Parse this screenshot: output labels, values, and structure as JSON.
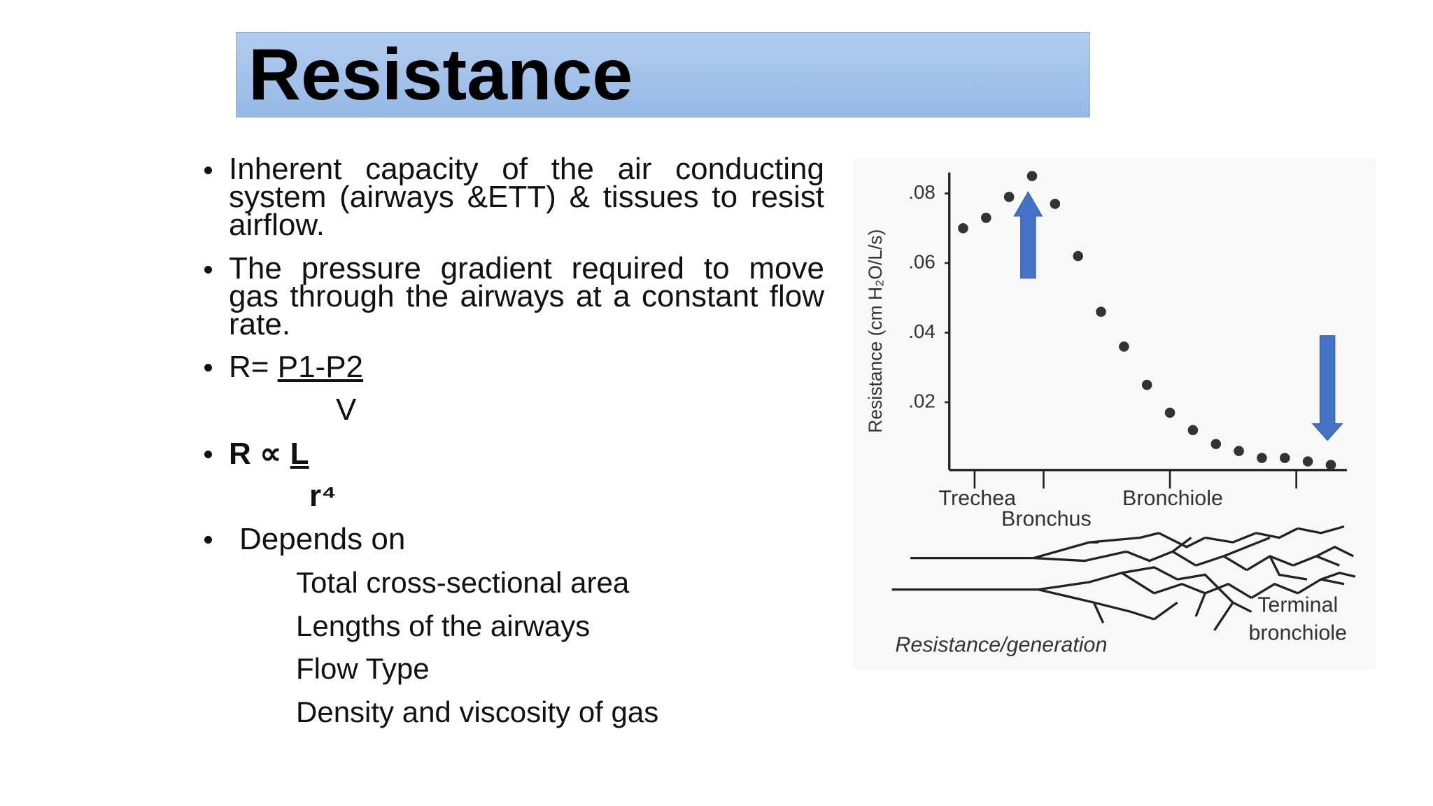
{
  "title": "Resistance",
  "bullets": {
    "definition_1": "Inherent capacity of the air conducting system (airways &ETT) & tissues to resist airflow.",
    "definition_2": "The pressure gradient required to move gas through the airways at a constant flow rate.",
    "formula_1": {
      "lhs": "R=",
      "numerator": "P1-P2",
      "denominator": "V"
    },
    "formula_2": {
      "lhs": "R ∝",
      "numerator": "L",
      "denominator": "r⁴"
    },
    "depends_on": {
      "heading": "Depends on",
      "items": [
        "Total cross-sectional area",
        "Lengths of the airways",
        "Flow Type",
        "Density and viscosity of gas"
      ]
    }
  },
  "chart_data": {
    "type": "scatter",
    "y_label": "Resistance (cm H₂O/L/s)",
    "x": [
      0,
      1,
      2,
      3,
      4,
      5,
      6,
      7,
      8,
      9,
      10,
      11,
      12,
      13,
      14,
      15,
      16
    ],
    "values": [
      0.07,
      0.073,
      0.079,
      0.085,
      0.077,
      0.062,
      0.046,
      0.036,
      0.025,
      0.017,
      0.012,
      0.008,
      0.006,
      0.004,
      0.004,
      0.003,
      0.002
    ],
    "color": "#333333",
    "xlim": [
      -0.6,
      16.7
    ],
    "xticks": [
      {
        "value": 0.5,
        "label": "Trechea"
      },
      {
        "value": 3.5,
        "label": "Bronchus"
      },
      {
        "value": 9,
        "label": "Bronchiole"
      },
      {
        "value": 14.5,
        "label": null
      }
    ],
    "ylim": [
      0,
      0.086
    ],
    "yticks": [
      {
        "value": 0.02,
        "label": ".02"
      },
      {
        "value": 0.04,
        "label": ".04"
      },
      {
        "value": 0.06,
        "label": ".06"
      },
      {
        "value": 0.08,
        "label": ".08"
      }
    ],
    "annotations": [
      "Terminal",
      "bronchiole",
      "Resistance/generation"
    ]
  }
}
